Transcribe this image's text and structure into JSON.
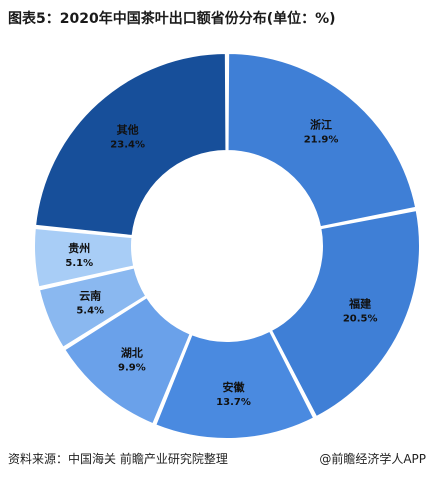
{
  "title": "图表5：2020年中国茶叶出口额省份分布(单位：%)",
  "source": "资料来源：中国海关 前瞻产业研究院整理",
  "app_credit": "@前瞻经济学人APP",
  "chart_data": {
    "type": "pie",
    "donut": true,
    "unit": "%",
    "categories": [
      "浙江",
      "福建",
      "安徽",
      "湖北",
      "云南",
      "贵州",
      "其他"
    ],
    "values": [
      21.9,
      20.5,
      13.7,
      9.9,
      5.4,
      5.1,
      23.4
    ],
    "value_labels": [
      "21.9%",
      "20.5%",
      "13.7%",
      "9.9%",
      "5.4%",
      "5.1%",
      "23.4%"
    ],
    "colors": [
      "#3f7fd6",
      "#3f7fd6",
      "#4a8ae0",
      "#6aa1ea",
      "#8ab8f0",
      "#a8cdf6",
      "#174f9a"
    ]
  }
}
